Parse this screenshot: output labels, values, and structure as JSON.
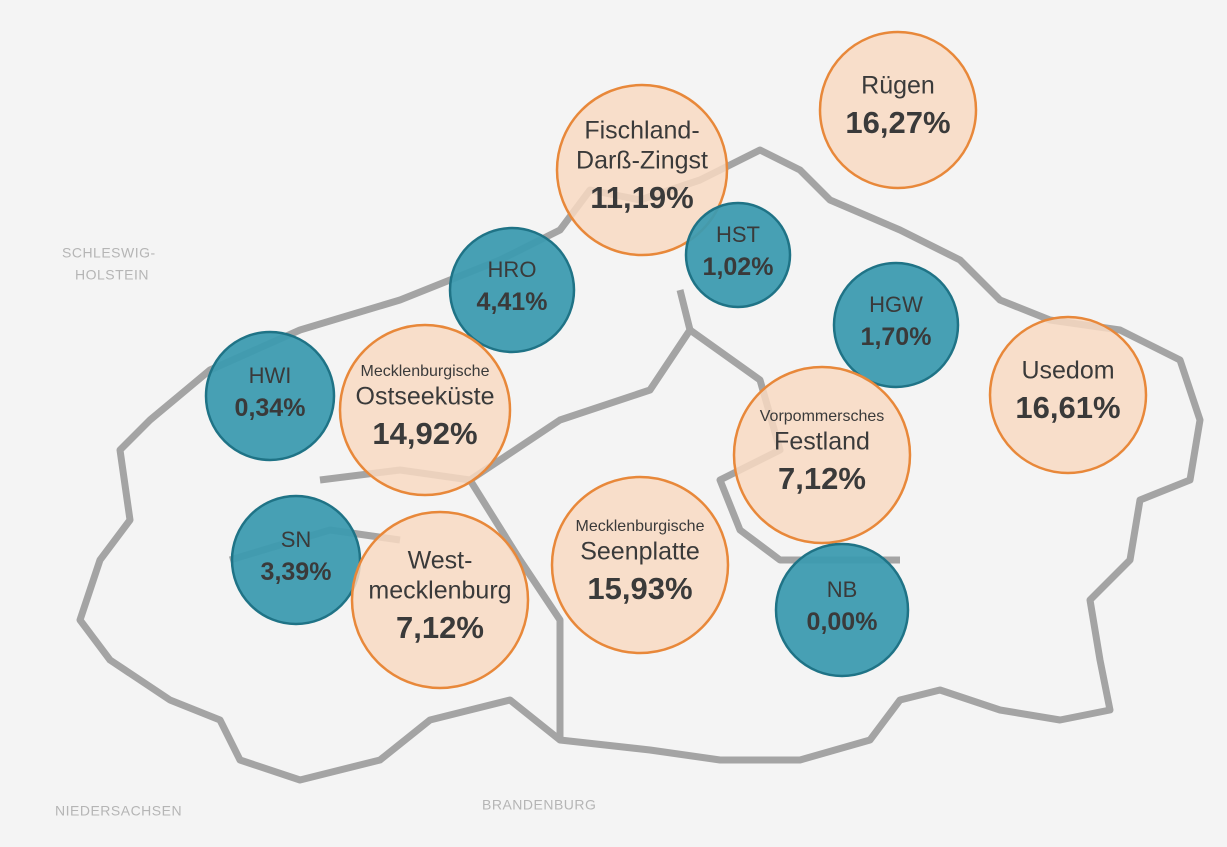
{
  "neighbors": {
    "schleswig_holstein": [
      "SCHLESWIG-",
      "HOLSTEIN"
    ],
    "niedersachsen": "NIEDERSACHSEN",
    "brandenburg": "BRANDENBURG"
  },
  "regions": [
    {
      "lines": [
        "Fischland-",
        "Darß-Zingst"
      ],
      "value": "11,19%",
      "color": "#f8d9c2"
    },
    {
      "lines": [
        "Rügen"
      ],
      "value": "16,27%",
      "color": "#f8d9c2"
    },
    {
      "lines": [
        "HST"
      ],
      "value": "1,02%",
      "color": "#3d9bb0"
    },
    {
      "lines": [
        "HRO"
      ],
      "value": "4,41%",
      "color": "#3d9bb0"
    },
    {
      "lines": [
        "HGW"
      ],
      "value": "1,70%",
      "color": "#3d9bb0"
    },
    {
      "lines": [
        "Usedom"
      ],
      "value": "16,61%",
      "color": "#f8d9c2"
    },
    {
      "lines": [
        "HWI"
      ],
      "value": "0,34%",
      "color": "#3d9bb0"
    },
    {
      "prefix": "Mecklenburgische",
      "lines": [
        "Ostseeküste"
      ],
      "value": "14,92%",
      "color": "#f8d9c2"
    },
    {
      "prefix": "Vorpommersches",
      "lines": [
        "Festland"
      ],
      "value": "7,12%",
      "color": "#f8d9c2"
    },
    {
      "lines": [
        "SN"
      ],
      "value": "3,39%",
      "color": "#3d9bb0"
    },
    {
      "lines": [
        "West-",
        "mecklenburg"
      ],
      "value": "7,12%",
      "color": "#f8d9c2"
    },
    {
      "prefix": "Mecklenburgische",
      "lines": [
        "Seenplatte"
      ],
      "value": "15,93%",
      "color": "#f8d9c2"
    },
    {
      "lines": [
        "NB"
      ],
      "value": "0,00%",
      "color": "#3d9bb0"
    }
  ]
}
